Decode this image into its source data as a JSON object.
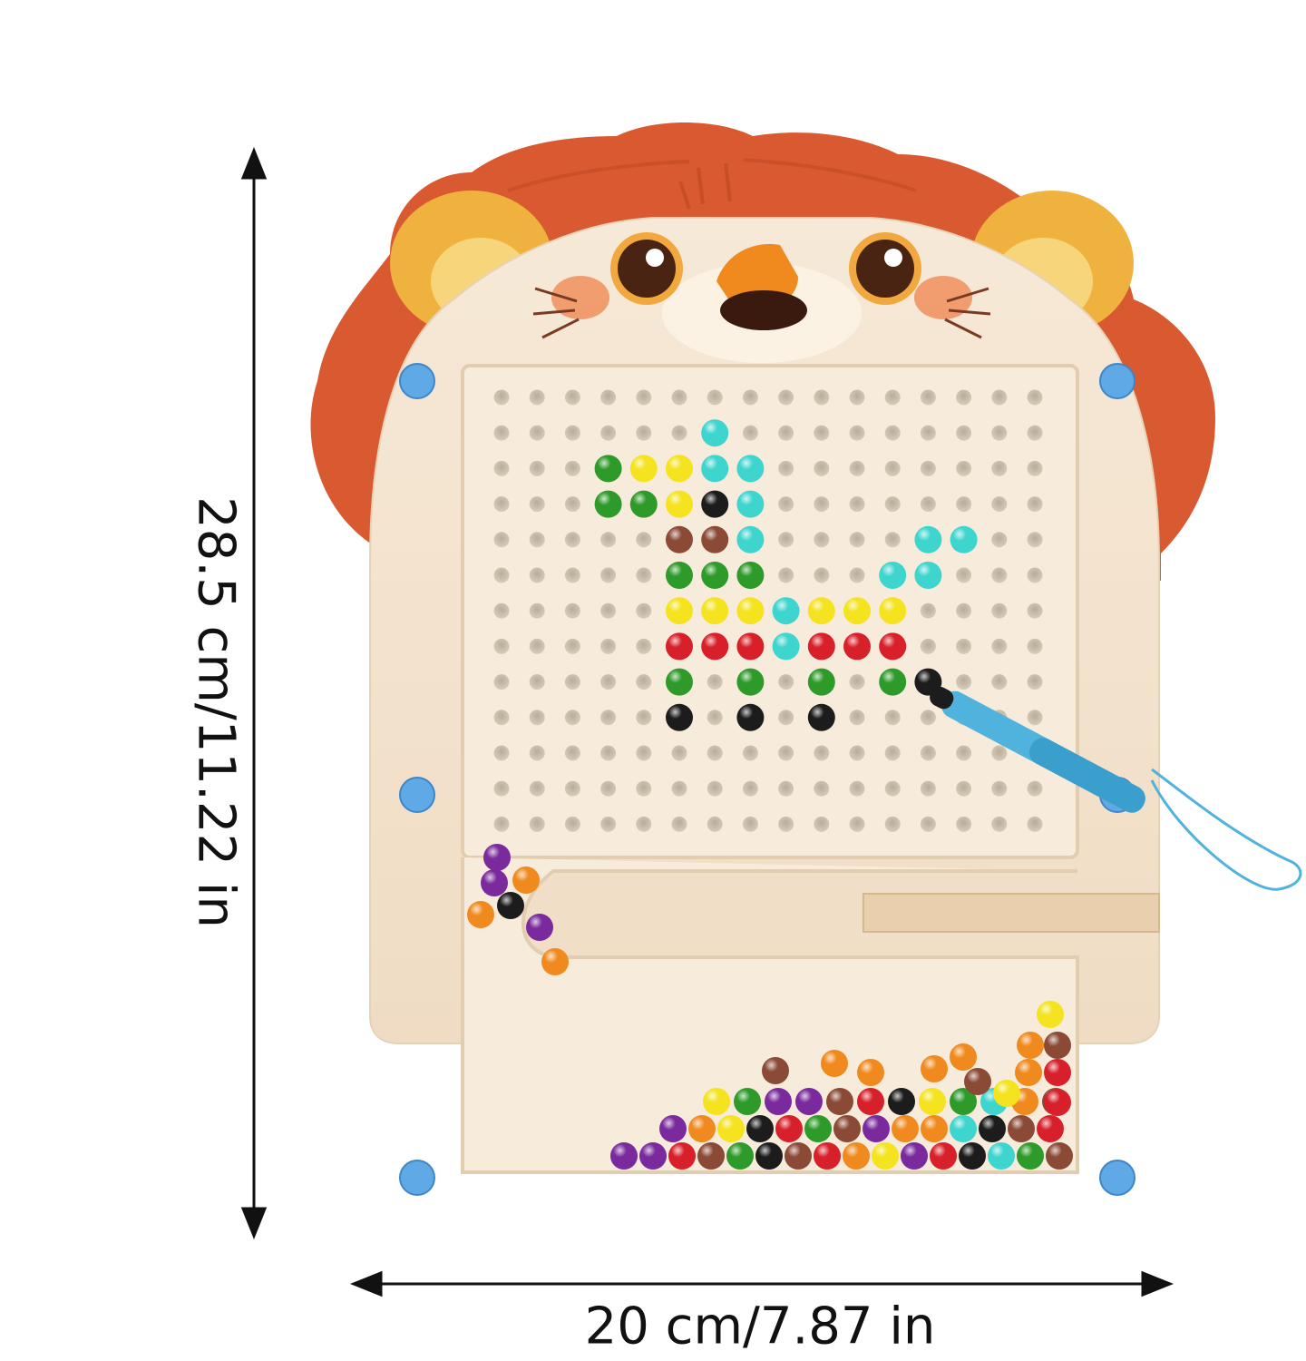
{
  "dimensions": {
    "height_label": "28.5 cm/11.22 in",
    "width_label": "20 cm/7.87 in"
  },
  "colors": {
    "board": "#f3e4d0",
    "board_edge": "#e8d3b8",
    "mane": "#d95a30",
    "ear": "#f0b23e",
    "dots": "#cfc3b2",
    "magnet": "#5fa9e6",
    "pen": "#4fb3dd"
  },
  "bead_colors": {
    "g": "#2e9a2a",
    "y": "#f4e31e",
    "c": "#3ed5cf",
    "k": "#1c1c1c",
    "b": "#8a4a36",
    "r": "#d8202a",
    "p": "#7a2a9c",
    "o": "#f08a1e"
  },
  "pattern": [
    [
      6,
      1,
      "c"
    ],
    [
      3,
      2,
      "g"
    ],
    [
      4,
      2,
      "y"
    ],
    [
      5,
      2,
      "y"
    ],
    [
      6,
      2,
      "c"
    ],
    [
      7,
      2,
      "c"
    ],
    [
      3,
      3,
      "g"
    ],
    [
      4,
      3,
      "g"
    ],
    [
      5,
      3,
      "y"
    ],
    [
      6,
      3,
      "k"
    ],
    [
      7,
      3,
      "c"
    ],
    [
      5,
      4,
      "b"
    ],
    [
      6,
      4,
      "b"
    ],
    [
      7,
      4,
      "c"
    ],
    [
      12,
      4,
      "c"
    ],
    [
      13,
      4,
      "c"
    ],
    [
      5,
      5,
      "g"
    ],
    [
      6,
      5,
      "g"
    ],
    [
      7,
      5,
      "g"
    ],
    [
      11,
      5,
      "c"
    ],
    [
      12,
      5,
      "c"
    ],
    [
      5,
      6,
      "y"
    ],
    [
      6,
      6,
      "y"
    ],
    [
      7,
      6,
      "y"
    ],
    [
      8,
      6,
      "c"
    ],
    [
      9,
      6,
      "y"
    ],
    [
      10,
      6,
      "y"
    ],
    [
      11,
      6,
      "y"
    ],
    [
      5,
      7,
      "r"
    ],
    [
      6,
      7,
      "r"
    ],
    [
      7,
      7,
      "r"
    ],
    [
      8,
      7,
      "c"
    ],
    [
      9,
      7,
      "r"
    ],
    [
      10,
      7,
      "r"
    ],
    [
      11,
      7,
      "r"
    ],
    [
      5,
      8,
      "g"
    ],
    [
      7,
      8,
      "g"
    ],
    [
      9,
      8,
      "g"
    ],
    [
      11,
      8,
      "g"
    ],
    [
      5,
      9,
      "k"
    ],
    [
      7,
      9,
      "k"
    ],
    [
      9,
      9,
      "k"
    ],
    [
      12,
      8,
      "k"
    ]
  ]
}
